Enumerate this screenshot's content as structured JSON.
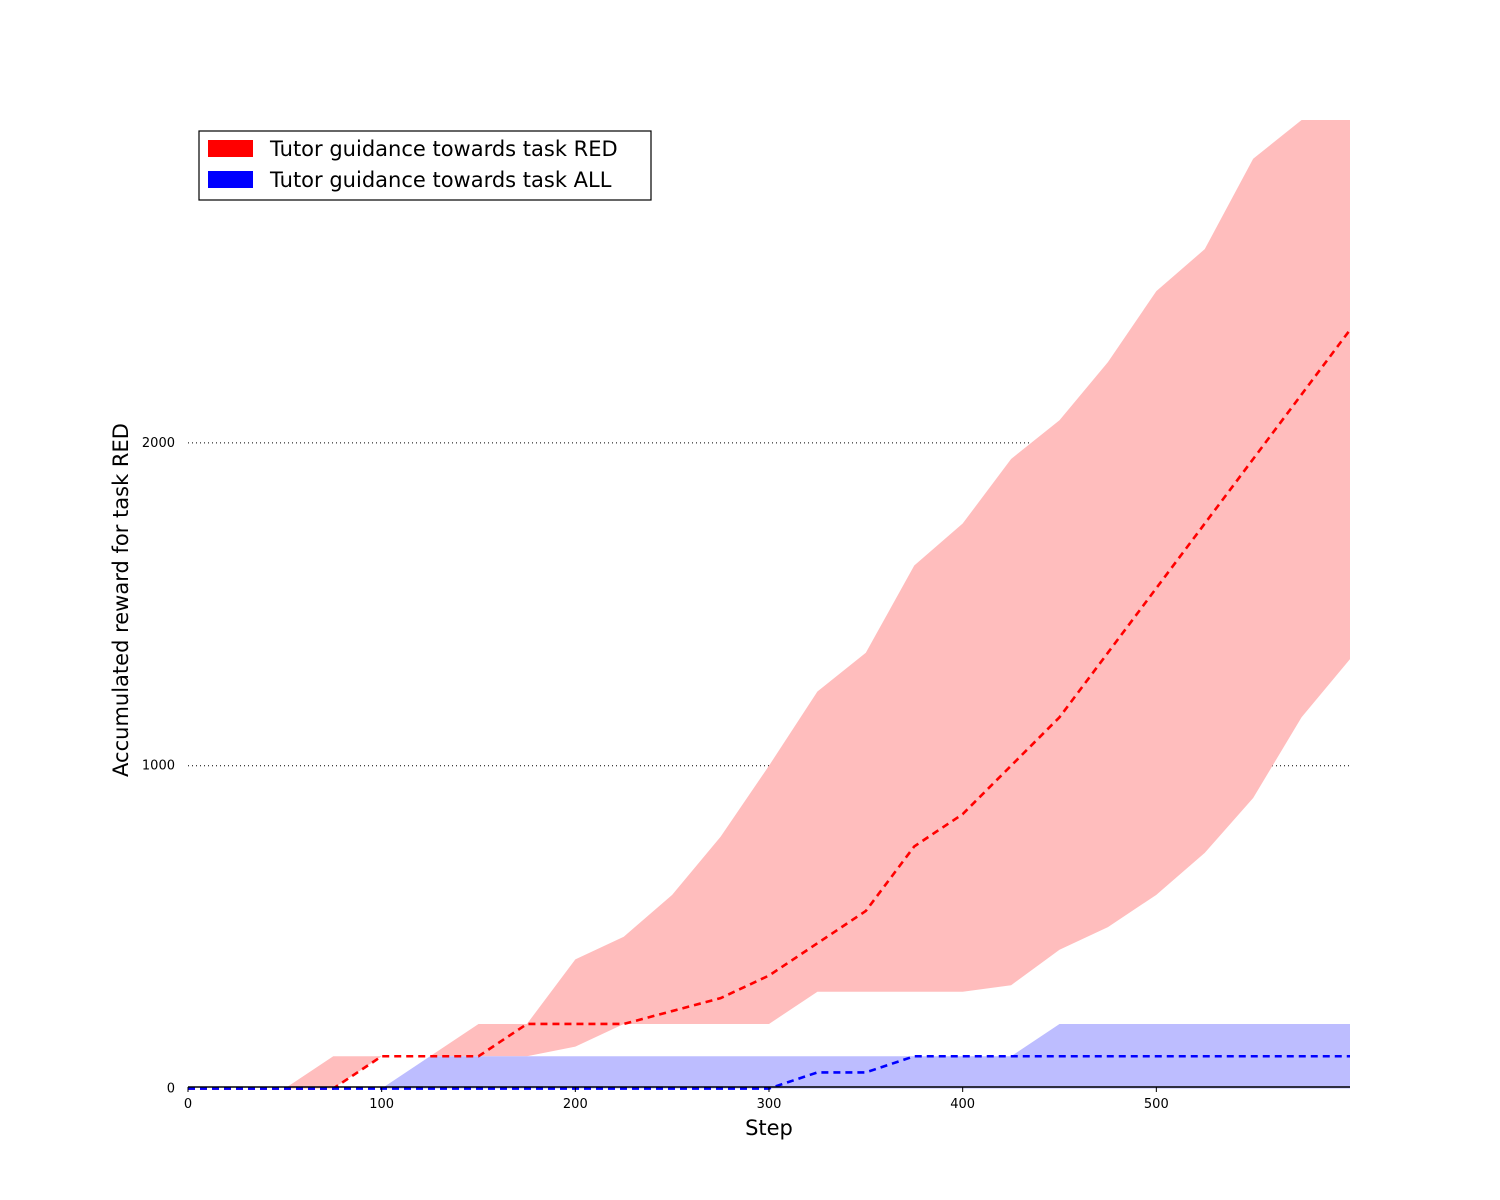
{
  "chart_data": {
    "type": "area",
    "title": "",
    "xlabel": "Step",
    "ylabel": "Accumulated reward for task RED",
    "xlim": [
      0,
      600
    ],
    "ylim": [
      -20,
      3000
    ],
    "x_ticks": [
      0,
      100,
      200,
      300,
      400,
      500
    ],
    "y_ticks": [
      0,
      1000,
      2000
    ],
    "grid": "horizontal dotted at y ticks",
    "legend_position": "top-left",
    "series": [
      {
        "name": "Tutor guidance towards task RED",
        "color": "#ff0000",
        "band_color": "#ffbdbd",
        "x": [
          0,
          25,
          50,
          75,
          100,
          125,
          150,
          175,
          200,
          225,
          250,
          275,
          300,
          325,
          350,
          375,
          400,
          425,
          450,
          475,
          500,
          525,
          550,
          575,
          600
        ],
        "mean": [
          0,
          0,
          0,
          0,
          100,
          100,
          100,
          200,
          200,
          200,
          240,
          280,
          350,
          450,
          550,
          750,
          850,
          1000,
          1150,
          1350,
          1550,
          1750,
          1950,
          2150,
          2350
        ],
        "upper": [
          0,
          0,
          0,
          100,
          100,
          100,
          200,
          200,
          400,
          470,
          600,
          780,
          1000,
          1230,
          1350,
          1620,
          1750,
          1950,
          2070,
          2250,
          2470,
          2600,
          2880,
          3000,
          3000
        ],
        "lower": [
          0,
          0,
          0,
          0,
          100,
          100,
          100,
          100,
          130,
          200,
          200,
          200,
          200,
          300,
          300,
          300,
          300,
          320,
          430,
          500,
          600,
          730,
          900,
          1150,
          1330
        ]
      },
      {
        "name": "Tutor guidance towards task ALL",
        "color": "#0000ff",
        "band_color": "#bdbdff",
        "x": [
          0,
          25,
          50,
          75,
          100,
          125,
          150,
          175,
          200,
          225,
          250,
          275,
          300,
          325,
          350,
          375,
          400,
          425,
          450,
          475,
          500,
          525,
          550,
          575,
          600
        ],
        "mean": [
          0,
          0,
          0,
          0,
          0,
          0,
          0,
          0,
          0,
          0,
          0,
          0,
          0,
          50,
          50,
          100,
          100,
          100,
          100,
          100,
          100,
          100,
          100,
          100,
          100
        ],
        "upper": [
          0,
          0,
          0,
          0,
          0,
          100,
          100,
          100,
          100,
          100,
          100,
          100,
          100,
          100,
          100,
          100,
          100,
          100,
          200,
          200,
          200,
          200,
          200,
          200,
          200
        ],
        "lower": [
          0,
          0,
          0,
          0,
          0,
          0,
          0,
          0,
          0,
          0,
          0,
          0,
          0,
          0,
          0,
          0,
          0,
          0,
          0,
          0,
          0,
          0,
          0,
          0,
          0
        ]
      }
    ]
  }
}
